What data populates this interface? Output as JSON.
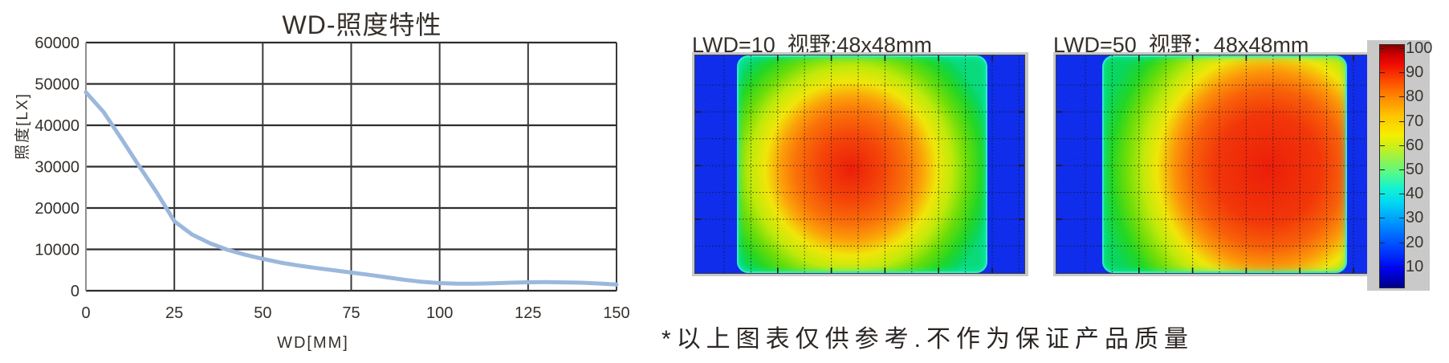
{
  "chart_data": [
    {
      "type": "line",
      "title": "WD-照度特性",
      "xlabel": "WD[MM]",
      "ylabel": "照度[LX]",
      "xlim": [
        0,
        150
      ],
      "ylim": [
        0,
        60000
      ],
      "x_ticks": [
        0,
        25,
        50,
        75,
        100,
        125,
        150
      ],
      "y_ticks": [
        0,
        10000,
        20000,
        30000,
        40000,
        50000,
        60000
      ],
      "grid": true,
      "grid_color": "#2d2d2d",
      "axis_color": "#8f8f8f",
      "series": [
        {
          "name": "照度",
          "color": "#9bb8dc",
          "x": [
            0,
            5,
            10,
            15,
            20,
            25,
            30,
            35,
            40,
            45,
            50,
            55,
            60,
            65,
            70,
            75,
            80,
            85,
            90,
            95,
            100,
            105,
            110,
            115,
            120,
            125,
            130,
            135,
            140,
            145,
            150
          ],
          "y": [
            48000,
            43200,
            36800,
            30200,
            23800,
            16800,
            13600,
            11500,
            9900,
            8700,
            7700,
            6800,
            6100,
            5500,
            4950,
            4400,
            3850,
            3250,
            2650,
            2150,
            1850,
            1700,
            1700,
            1800,
            1950,
            2050,
            2080,
            2020,
            1950,
            1750,
            1500
          ]
        }
      ]
    },
    {
      "type": "heatmap",
      "title": "LWD=10  视野:48x48mm",
      "value_range": [
        0,
        100
      ],
      "peak_value": 95,
      "peak_position": "slightly right of field center",
      "grid": true,
      "field": {
        "left_frac": 0.127,
        "width_frac": 0.761,
        "ellipse": "60% 70%",
        "center": "45.5% 52%",
        "stops": [
          [
            "#ee1600",
            0
          ],
          [
            "#f84000",
            22
          ],
          [
            "#fd7000",
            38
          ],
          [
            "#ffa000",
            48
          ],
          [
            "#f3e800",
            58
          ],
          [
            "#c0ec00",
            68
          ],
          [
            "#66df00",
            78
          ],
          [
            "#1cd81c",
            88
          ],
          [
            "#00d85a",
            96
          ],
          [
            "#00dc78",
            100
          ]
        ]
      }
    },
    {
      "type": "heatmap",
      "title": "LWD=50  视野：48x48mm",
      "value_range": [
        0,
        100
      ],
      "peak_value": 92,
      "peak_position": "right of field center, reaching right edge",
      "grid": true,
      "field": {
        "left_frac": 0.139,
        "width_frac": 0.744,
        "ellipse": "72% 84%",
        "center": "68% 52%",
        "stops": [
          [
            "#ee1600",
            0
          ],
          [
            "#f53000",
            30
          ],
          [
            "#fb5c00",
            44
          ],
          [
            "#ff9400",
            54
          ],
          [
            "#f3e800",
            64
          ],
          [
            "#c0ec00",
            72
          ],
          [
            "#66df00",
            82
          ],
          [
            "#1cd81c",
            90
          ],
          [
            "#00d85a",
            100
          ]
        ]
      }
    }
  ],
  "colorbar": {
    "range": [
      0,
      100
    ],
    "ticks": [
      100,
      90,
      80,
      70,
      60,
      50,
      40,
      30,
      20,
      10
    ],
    "jet_stops": [
      [
        0,
        "#00008a"
      ],
      [
        8,
        "#0004f2"
      ],
      [
        17,
        "#0048ff"
      ],
      [
        27,
        "#0096ff"
      ],
      [
        35,
        "#00d8f0"
      ],
      [
        41,
        "#14f2d2"
      ],
      [
        47,
        "#52fa8c"
      ],
      [
        53,
        "#96f24a"
      ],
      [
        59,
        "#d4ee14"
      ],
      [
        63,
        "#f6ee00"
      ],
      [
        71,
        "#ffc200"
      ],
      [
        79,
        "#ff8400"
      ],
      [
        86,
        "#fb4400"
      ],
      [
        92,
        "#ee0c00"
      ],
      [
        96,
        "#cf0000"
      ],
      [
        100,
        "#840000"
      ]
    ]
  },
  "footnote": "*以上图表仅供参考.不作为保证产品质量",
  "colors": {
    "heatmap_background_blue": "#0726ee",
    "heatmap_rim_cyan": "#2beec6",
    "figure_border_gray": "#c9c9c9",
    "curve_blue": "#9bb8dc",
    "text": "#35302c"
  }
}
